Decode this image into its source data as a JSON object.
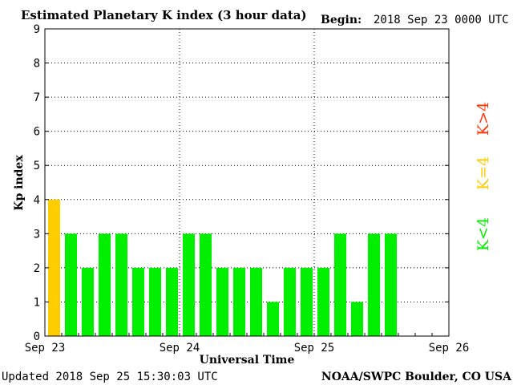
{
  "chart_data": {
    "type": "bar",
    "title": "Estimated Planetary K index (3 hour data)",
    "begin_label": "Begin:",
    "begin_value": "2018 Sep 23 0000 UTC",
    "ylabel": "Kp index",
    "xlabel": "Universal Time",
    "ylim": [
      0,
      9
    ],
    "yticks": [
      "0",
      "1",
      "2",
      "3",
      "4",
      "5",
      "6",
      "7",
      "8",
      "9"
    ],
    "xticks": [
      "Sep 23",
      "Sep 24",
      "Sep 25",
      "Sep 26"
    ],
    "grid": true,
    "values": [
      4,
      3,
      2,
      3,
      3,
      2,
      2,
      2,
      3,
      3,
      2,
      2,
      2,
      1,
      2,
      2,
      2,
      3,
      1,
      3,
      3
    ],
    "slots_total": 24,
    "legend": [
      {
        "label": "K<4",
        "color": "#00ee00"
      },
      {
        "label": "K=4",
        "color": "#ffcc00"
      },
      {
        "label": "K>4",
        "color": "#ff3300"
      }
    ],
    "colors": {
      "below": "#00ee00",
      "equal": "#ffcc00",
      "above": "#ff3300"
    }
  },
  "footer": {
    "updated": "Updated 2018 Sep 25 15:30:03 UTC",
    "credit": "NOAA/SWPC Boulder, CO USA"
  }
}
